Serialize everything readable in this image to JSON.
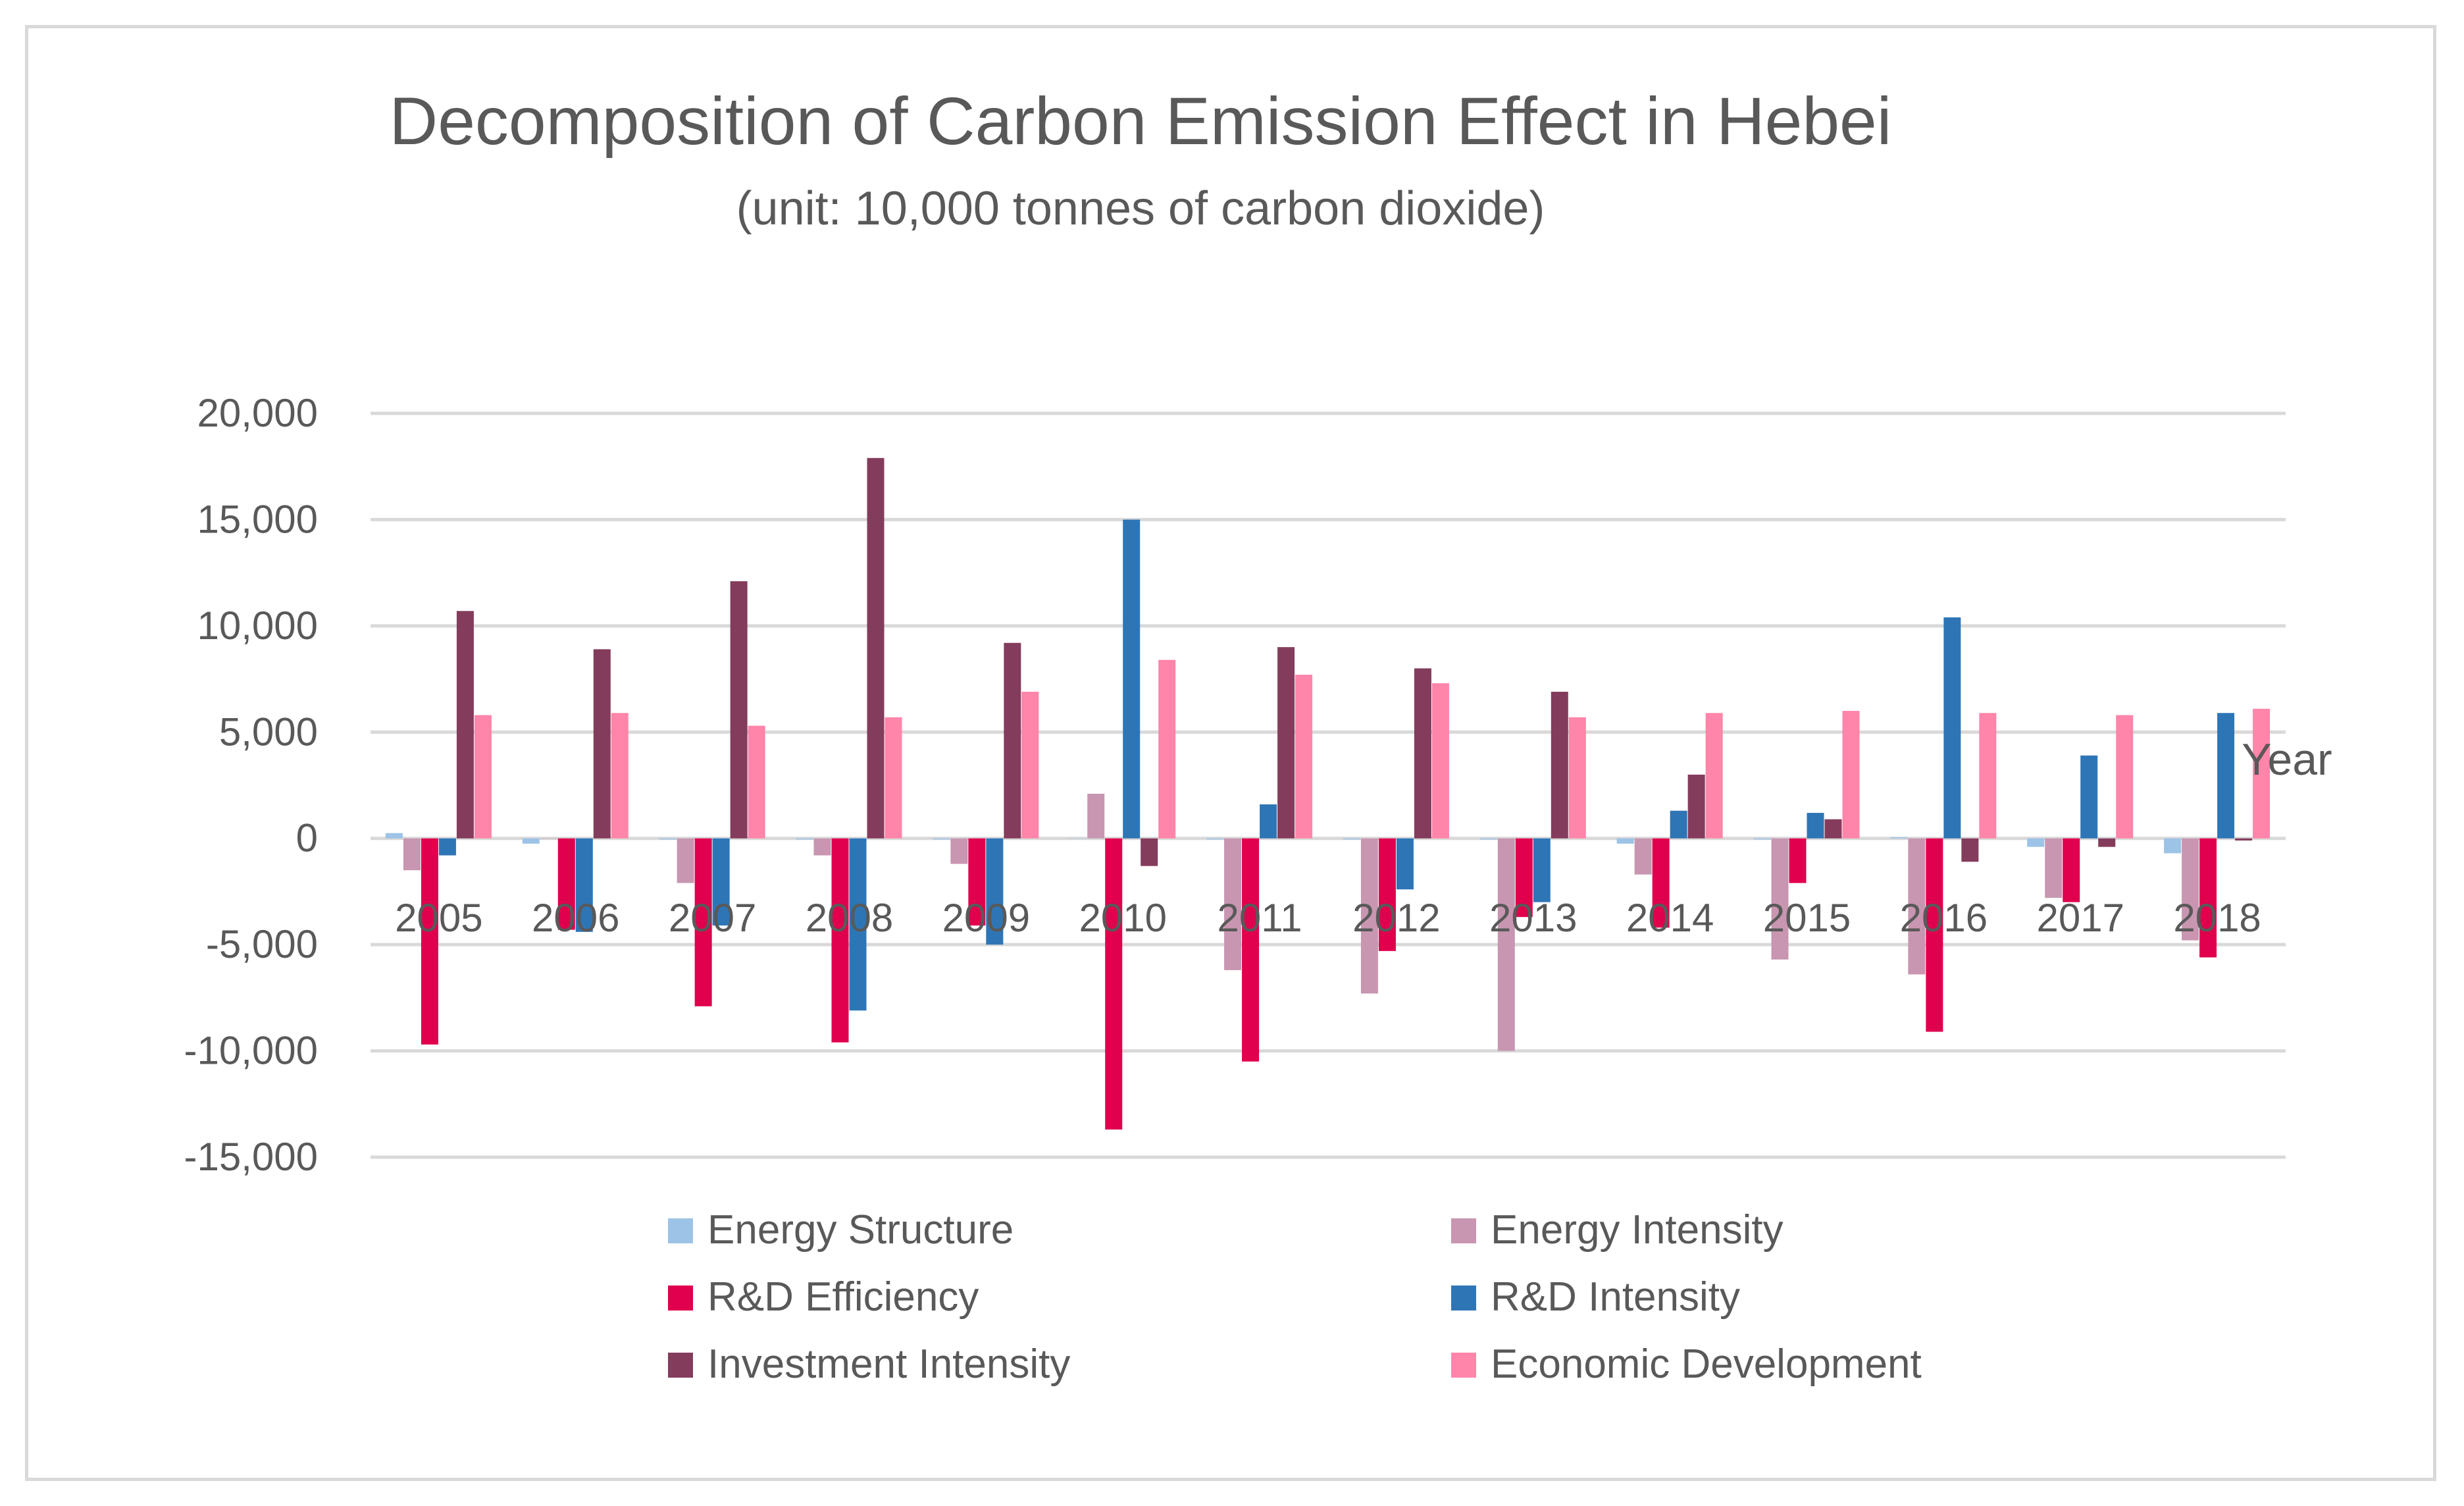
{
  "chart_data": {
    "type": "bar",
    "title": "Decomposition of Carbon Emission Effect in Hebei",
    "subtitle": "(unit: 10,000 tonnes of carbon dioxide)",
    "xlabel": "Year",
    "ylabel": "",
    "ylim": [
      -15000,
      20000
    ],
    "yticks": [
      20000,
      15000,
      10000,
      5000,
      0,
      -5000,
      -10000,
      -15000
    ],
    "ytick_labels": [
      "20,000",
      "15,000",
      "10,000",
      "5,000",
      "0",
      "-5,000",
      "-10,000",
      "-15,000"
    ],
    "grid": true,
    "legend_position": "bottom",
    "categories": [
      "2005",
      "2006",
      "2007",
      "2008",
      "2009",
      "2010",
      "2011",
      "2012",
      "2013",
      "2014",
      "2015",
      "2016",
      "2017",
      "2018"
    ],
    "series": [
      {
        "name": "Energy Structure",
        "color": "#9dc3e6",
        "values": [
          250,
          -250,
          -50,
          -50,
          -50,
          0,
          -50,
          -50,
          -50,
          -250,
          -50,
          50,
          -400,
          -700
        ]
      },
      {
        "name": "Energy Intensity",
        "color": "#c896b0",
        "values": [
          -1500,
          0,
          -2100,
          -800,
          -1200,
          2100,
          -6200,
          -7300,
          -10000,
          -1700,
          -5700,
          -6400,
          -2800,
          -4800
        ]
      },
      {
        "name": "R&D Efficiency",
        "color": "#e0004d",
        "values": [
          -9700,
          -4300,
          -7900,
          -9600,
          -4100,
          -13700,
          -10500,
          -5300,
          -3700,
          -4200,
          -2100,
          -9100,
          -3000,
          -5600
        ]
      },
      {
        "name": "R&D Intensity",
        "color": "#2e75b6",
        "values": [
          -800,
          -4400,
          -4100,
          -8100,
          -5000,
          15000,
          1600,
          -2400,
          -3000,
          1300,
          1200,
          10400,
          3900,
          5900
        ]
      },
      {
        "name": "Investment Intensity",
        "color": "#843c5c",
        "values": [
          10700,
          8900,
          12100,
          17900,
          9200,
          -1300,
          9000,
          8000,
          6900,
          3000,
          900,
          -1100,
          -400,
          -100
        ]
      },
      {
        "name": "Economic Development",
        "color": "#ff85aa",
        "values": [
          5800,
          5900,
          5300,
          5700,
          6900,
          8400,
          7700,
          7300,
          5700,
          5900,
          6000,
          5900,
          5800,
          6100
        ]
      }
    ]
  }
}
